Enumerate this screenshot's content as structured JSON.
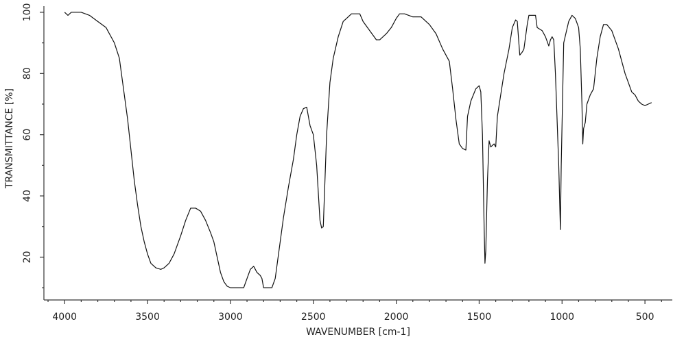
{
  "chart_data": {
    "type": "line",
    "x_label": "WAVENUMBER [cm-1]",
    "y_label": "TRANSMITTANCE [%]",
    "color": "#111111",
    "xlim": [
      4125,
      335
    ],
    "ylim": [
      6,
      102
    ],
    "xticks": [
      4000,
      3500,
      3000,
      2500,
      2000,
      1500,
      1000,
      500
    ],
    "xminorticks": [
      4100,
      3900,
      3800,
      3700,
      3600,
      3400,
      3300,
      3200,
      3100,
      2900,
      2800,
      2700,
      2600,
      2400,
      2300,
      2200,
      2100,
      1900,
      1800,
      1700,
      1600,
      1400,
      1300,
      1200,
      1100,
      900,
      800,
      700,
      600,
      400
    ],
    "yticks": [
      20,
      40,
      60,
      80,
      100
    ],
    "yminorticks": [
      10,
      30,
      50,
      70,
      90
    ],
    "x": [
      4000,
      3980,
      3960,
      3900,
      3850,
      3800,
      3750,
      3700,
      3670,
      3650,
      3620,
      3600,
      3580,
      3560,
      3540,
      3520,
      3500,
      3480,
      3450,
      3420,
      3400,
      3370,
      3340,
      3300,
      3270,
      3240,
      3210,
      3180,
      3150,
      3120,
      3100,
      3080,
      3060,
      3040,
      3020,
      3000,
      2950,
      2920,
      2900,
      2880,
      2860,
      2840,
      2820,
      2810,
      2800,
      2750,
      2730,
      2700,
      2680,
      2650,
      2620,
      2600,
      2580,
      2560,
      2540,
      2520,
      2500,
      2480,
      2460,
      2450,
      2440,
      2420,
      2400,
      2380,
      2350,
      2320,
      2300,
      2270,
      2250,
      2220,
      2200,
      2160,
      2120,
      2100,
      2060,
      2030,
      2000,
      1980,
      1950,
      1900,
      1850,
      1800,
      1760,
      1720,
      1680,
      1660,
      1640,
      1620,
      1600,
      1580,
      1570,
      1550,
      1520,
      1500,
      1490,
      1480,
      1470,
      1465,
      1460,
      1450,
      1440,
      1430,
      1410,
      1400,
      1390,
      1370,
      1350,
      1320,
      1300,
      1280,
      1270,
      1255,
      1240,
      1230,
      1210,
      1200,
      1160,
      1150,
      1120,
      1100,
      1080,
      1070,
      1060,
      1050,
      1040,
      1020,
      1010,
      1005,
      990,
      960,
      940,
      920,
      900,
      890,
      880,
      875,
      870,
      860,
      850,
      830,
      810,
      790,
      770,
      750,
      730,
      700,
      680,
      660,
      640,
      620,
      600,
      580,
      560,
      540,
      520,
      500,
      480,
      460
    ],
    "values": [
      100,
      99,
      100,
      100,
      99,
      97,
      95,
      90,
      85,
      77,
      65,
      55,
      45,
      37,
      30,
      25,
      21,
      18,
      16.5,
      16,
      16.5,
      18,
      21,
      27,
      32,
      36,
      36,
      35,
      32,
      28,
      25,
      20,
      15,
      12,
      10.5,
      10,
      10,
      10,
      13,
      16,
      17,
      15,
      14,
      13,
      10,
      10,
      13,
      25,
      33,
      43,
      52,
      60,
      66,
      68.5,
      69,
      63,
      60,
      50,
      32,
      29.5,
      30,
      60,
      77,
      85,
      92,
      97,
      98,
      99.5,
      99.5,
      99.5,
      97,
      94,
      91,
      91,
      93,
      95,
      98,
      99.5,
      99.5,
      98.5,
      98.5,
      96,
      93,
      88,
      84,
      75,
      65,
      57,
      55.5,
      55,
      66,
      71,
      75,
      76,
      74,
      60,
      30,
      18,
      22,
      45,
      58,
      56,
      57,
      56,
      66,
      73,
      80,
      88,
      95,
      97.5,
      97,
      86,
      87,
      88,
      96,
      99,
      99,
      95,
      94,
      92,
      89,
      91,
      92,
      91,
      80,
      50,
      29,
      50,
      90,
      97,
      99,
      98,
      95,
      88,
      70,
      57,
      62,
      64,
      70,
      73,
      75,
      85,
      92,
      96,
      96,
      94,
      91,
      88,
      84,
      80,
      77,
      74,
      73,
      71,
      70,
      69.5,
      70,
      70.5
    ]
  }
}
